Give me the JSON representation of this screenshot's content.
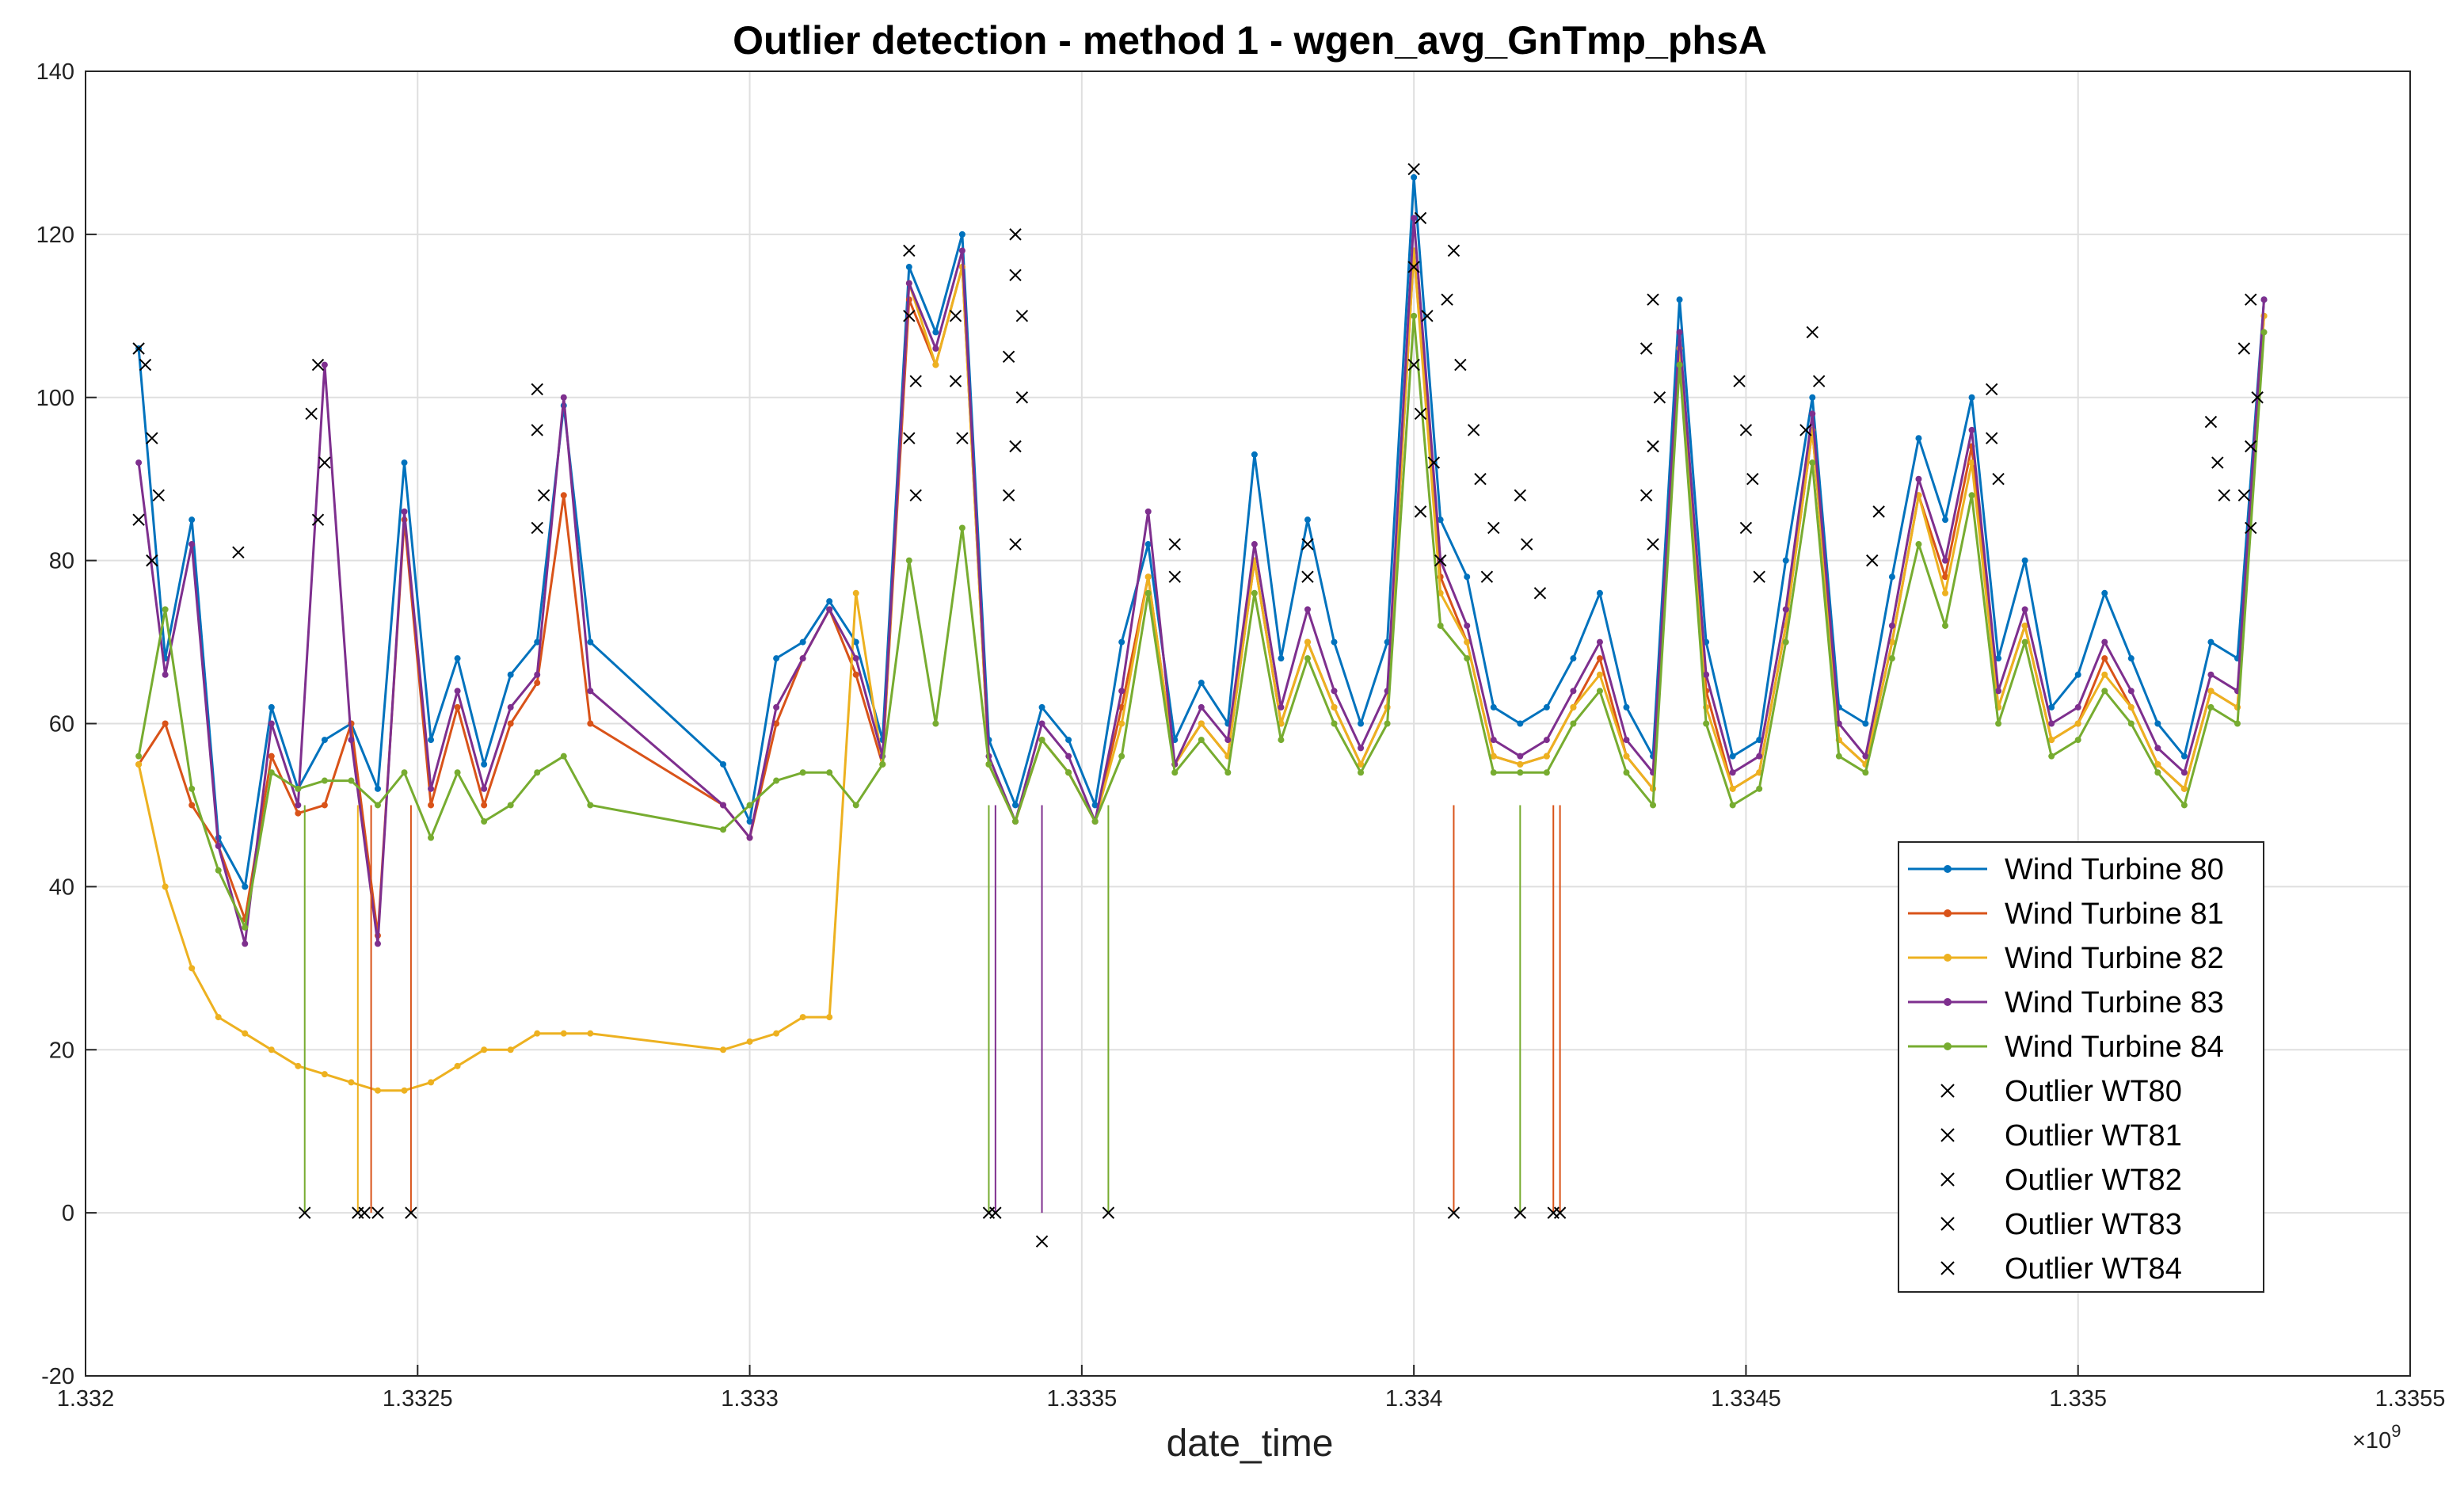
{
  "chart_data": {
    "type": "line",
    "title": "Outlier detection - method 1 - wgen_avg_GnTmp_phsA",
    "xlabel": "date_time",
    "ylabel": "",
    "x_exponent_label": "×10",
    "x_exponent_power": "9",
    "xlim": [
      1.332,
      1.3355
    ],
    "ylim": [
      -20,
      140
    ],
    "grid": true,
    "legend_position": "center-right",
    "xticks": [
      "1.332",
      "1.3325",
      "1.333",
      "1.3335",
      "1.334",
      "1.3345",
      "1.335",
      "1.3355"
    ],
    "yticks": [
      "-20",
      "0",
      "20",
      "40",
      "60",
      "80",
      "100",
      "120",
      "140"
    ],
    "x": [
      1.33208,
      1.33212,
      1.33216,
      1.3322,
      1.33224,
      1.33228,
      1.33232,
      1.33236,
      1.3324,
      1.33244,
      1.33248,
      1.33252,
      1.33256,
      1.3326,
      1.33264,
      1.33268,
      1.33272,
      1.33276,
      1.33296,
      1.333,
      1.33304,
      1.33308,
      1.33312,
      1.33316,
      1.3332,
      1.33324,
      1.33328,
      1.33332,
      1.33336,
      1.3334,
      1.33344,
      1.33348,
      1.33352,
      1.33356,
      1.3336,
      1.33364,
      1.33368,
      1.33372,
      1.33376,
      1.3338,
      1.33384,
      1.33388,
      1.33392,
      1.33396,
      1.334,
      1.33404,
      1.33408,
      1.33412,
      1.33416,
      1.3342,
      1.33424,
      1.33428,
      1.33432,
      1.33436,
      1.3344,
      1.33444,
      1.33448,
      1.33452,
      1.33456,
      1.3346,
      1.33464,
      1.33468,
      1.33472,
      1.33476,
      1.3348,
      1.33484,
      1.33488,
      1.33492,
      1.33496,
      1.335,
      1.33504,
      1.33508,
      1.33512,
      1.33516,
      1.3352,
      1.33524,
      1.33528
    ],
    "series": [
      {
        "name": "Wind Turbine 80",
        "color": "#0072BD",
        "values": [
          106,
          68,
          85,
          46,
          40,
          62,
          52,
          58,
          60,
          52,
          92,
          58,
          68,
          55,
          66,
          70,
          99,
          70,
          55,
          48,
          68,
          70,
          75,
          70,
          58,
          116,
          108,
          120,
          58,
          50,
          62,
          58,
          50,
          70,
          82,
          58,
          65,
          60,
          93,
          68,
          85,
          70,
          60,
          70,
          127,
          85,
          78,
          62,
          60,
          62,
          68,
          76,
          62,
          56,
          112,
          70,
          56,
          58,
          80,
          100,
          62,
          60,
          78,
          95,
          85,
          100,
          68,
          80,
          62,
          66,
          76,
          68,
          60,
          56,
          70,
          68,
          112
        ]
      },
      {
        "name": "Wind Turbine 81",
        "color": "#D95319",
        "values": [
          55,
          60,
          50,
          45,
          36,
          56,
          49,
          50,
          60,
          34,
          85,
          50,
          62,
          50,
          60,
          65,
          88,
          60,
          50,
          46,
          60,
          68,
          74,
          66,
          55,
          112,
          104,
          116,
          55,
          48,
          58,
          54,
          48,
          62,
          78,
          55,
          60,
          56,
          80,
          60,
          70,
          62,
          55,
          62,
          118,
          78,
          70,
          56,
          55,
          56,
          62,
          68,
          56,
          52,
          106,
          64,
          52,
          54,
          72,
          96,
          58,
          55,
          70,
          88,
          78,
          94,
          62,
          72,
          58,
          60,
          68,
          62,
          55,
          52,
          64,
          62,
          110
        ]
      },
      {
        "name": "Wind Turbine 82",
        "color": "#EDB120",
        "values": [
          55,
          40,
          30,
          24,
          22,
          20,
          18,
          17,
          16,
          15,
          15,
          16,
          18,
          20,
          20,
          22,
          22,
          22,
          20,
          21,
          22,
          24,
          24,
          76,
          55,
          114,
          104,
          116,
          55,
          48,
          58,
          54,
          48,
          60,
          78,
          55,
          60,
          56,
          80,
          60,
          70,
          62,
          55,
          62,
          118,
          76,
          70,
          56,
          55,
          56,
          62,
          66,
          56,
          52,
          106,
          62,
          52,
          54,
          72,
          96,
          58,
          55,
          70,
          88,
          76,
          92,
          62,
          72,
          58,
          60,
          66,
          62,
          55,
          52,
          64,
          62,
          110
        ]
      },
      {
        "name": "Wind Turbine 83",
        "color": "#7E2F8E",
        "values": [
          92,
          66,
          82,
          45,
          33,
          60,
          50,
          104,
          58,
          33,
          86,
          52,
          64,
          52,
          62,
          66,
          100,
          64,
          50,
          46,
          62,
          68,
          74,
          68,
          56,
          114,
          106,
          118,
          56,
          48,
          60,
          56,
          48,
          64,
          86,
          55,
          62,
          58,
          82,
          62,
          74,
          64,
          57,
          64,
          122,
          80,
          72,
          58,
          56,
          58,
          64,
          70,
          58,
          54,
          108,
          66,
          54,
          56,
          74,
          98,
          60,
          56,
          72,
          90,
          80,
          96,
          64,
          74,
          60,
          62,
          70,
          64,
          57,
          54,
          66,
          64,
          112
        ]
      },
      {
        "name": "Wind Turbine 84",
        "color": "#77AC30",
        "values": [
          56,
          74,
          52,
          42,
          35,
          54,
          52,
          53,
          53,
          50,
          54,
          46,
          54,
          48,
          50,
          54,
          56,
          50,
          47,
          50,
          53,
          54,
          54,
          50,
          55,
          80,
          60,
          84,
          55,
          48,
          58,
          54,
          48,
          56,
          76,
          54,
          58,
          54,
          76,
          58,
          68,
          60,
          54,
          60,
          110,
          72,
          68,
          54,
          54,
          54,
          60,
          64,
          54,
          50,
          104,
          60,
          50,
          52,
          70,
          92,
          56,
          54,
          68,
          82,
          72,
          88,
          60,
          70,
          56,
          58,
          64,
          60,
          54,
          50,
          62,
          60,
          108
        ]
      }
    ],
    "outliers": [
      {
        "name": "Outlier WT80",
        "color": "#000000"
      },
      {
        "name": "Outlier WT81",
        "color": "#000000"
      },
      {
        "name": "Outlier WT82",
        "color": "#000000"
      },
      {
        "name": "Outlier WT83",
        "color": "#000000"
      },
      {
        "name": "Outlier WT84",
        "color": "#000000"
      }
    ],
    "outlier_points": [
      [
        1.33233,
        0
      ],
      [
        1.33241,
        0
      ],
      [
        1.33242,
        0
      ],
      [
        1.33244,
        0
      ],
      [
        1.33249,
        0
      ],
      [
        1.33336,
        0
      ],
      [
        1.33337,
        0
      ],
      [
        1.33344,
        -3.5
      ],
      [
        1.33354,
        0
      ],
      [
        1.33406,
        0
      ],
      [
        1.33416,
        0
      ],
      [
        1.33421,
        0
      ],
      [
        1.33422,
        0
      ],
      [
        1.33208,
        106
      ],
      [
        1.33209,
        104
      ],
      [
        1.3321,
        95
      ],
      [
        1.33211,
        88
      ],
      [
        1.33208,
        85
      ],
      [
        1.3321,
        80
      ],
      [
        1.33223,
        81
      ],
      [
        1.33235,
        104
      ],
      [
        1.33234,
        98
      ],
      [
        1.33236,
        92
      ],
      [
        1.33235,
        85
      ],
      [
        1.33268,
        101
      ],
      [
        1.33268,
        96
      ],
      [
        1.33269,
        88
      ],
      [
        1.33268,
        84
      ],
      [
        1.33324,
        118
      ],
      [
        1.33324,
        110
      ],
      [
        1.33325,
        102
      ],
      [
        1.33324,
        95
      ],
      [
        1.33325,
        88
      ],
      [
        1.33331,
        110
      ],
      [
        1.33331,
        102
      ],
      [
        1.33332,
        95
      ],
      [
        1.3334,
        120
      ],
      [
        1.3334,
        115
      ],
      [
        1.33341,
        110
      ],
      [
        1.33339,
        105
      ],
      [
        1.33341,
        100
      ],
      [
        1.3334,
        94
      ],
      [
        1.33339,
        88
      ],
      [
        1.3334,
        82
      ],
      [
        1.33364,
        82
      ],
      [
        1.33364,
        78
      ],
      [
        1.33384,
        82
      ],
      [
        1.33384,
        78
      ],
      [
        1.334,
        128
      ],
      [
        1.33401,
        122
      ],
      [
        1.334,
        116
      ],
      [
        1.33402,
        110
      ],
      [
        1.334,
        104
      ],
      [
        1.33401,
        98
      ],
      [
        1.33403,
        92
      ],
      [
        1.33401,
        86
      ],
      [
        1.33404,
        80
      ],
      [
        1.33406,
        118
      ],
      [
        1.33405,
        112
      ],
      [
        1.33407,
        104
      ],
      [
        1.33409,
        96
      ],
      [
        1.3341,
        90
      ],
      [
        1.33412,
        84
      ],
      [
        1.33411,
        78
      ],
      [
        1.33416,
        88
      ],
      [
        1.33417,
        82
      ],
      [
        1.33419,
        76
      ],
      [
        1.33436,
        112
      ],
      [
        1.33435,
        106
      ],
      [
        1.33437,
        100
      ],
      [
        1.33436,
        94
      ],
      [
        1.33435,
        88
      ],
      [
        1.33436,
        82
      ],
      [
        1.33449,
        102
      ],
      [
        1.3345,
        96
      ],
      [
        1.33451,
        90
      ],
      [
        1.3345,
        84
      ],
      [
        1.33452,
        78
      ],
      [
        1.3346,
        108
      ],
      [
        1.33461,
        102
      ],
      [
        1.33459,
        96
      ],
      [
        1.3347,
        86
      ],
      [
        1.33469,
        80
      ],
      [
        1.33487,
        101
      ],
      [
        1.33487,
        95
      ],
      [
        1.33488,
        90
      ],
      [
        1.3352,
        97
      ],
      [
        1.33521,
        92
      ],
      [
        1.33522,
        88
      ],
      [
        1.33526,
        112
      ],
      [
        1.33525,
        106
      ],
      [
        1.33527,
        100
      ],
      [
        1.33526,
        94
      ],
      [
        1.33525,
        88
      ],
      [
        1.33526,
        84
      ]
    ],
    "drop_segments": [
      {
        "x": 1.33233,
        "color": "#77AC30"
      },
      {
        "x": 1.33241,
        "color": "#EDB120"
      },
      {
        "x": 1.33243,
        "color": "#D95319"
      },
      {
        "x": 1.33249,
        "color": "#D95319"
      },
      {
        "x": 1.33336,
        "color": "#77AC30"
      },
      {
        "x": 1.33337,
        "color": "#7E2F8E"
      },
      {
        "x": 1.33344,
        "color": "#7E2F8E"
      },
      {
        "x": 1.33354,
        "color": "#77AC30"
      },
      {
        "x": 1.33406,
        "color": "#D95319"
      },
      {
        "x": 1.33416,
        "color": "#77AC30"
      },
      {
        "x": 1.33421,
        "color": "#D95319"
      },
      {
        "x": 1.33422,
        "color": "#D95319"
      }
    ]
  }
}
